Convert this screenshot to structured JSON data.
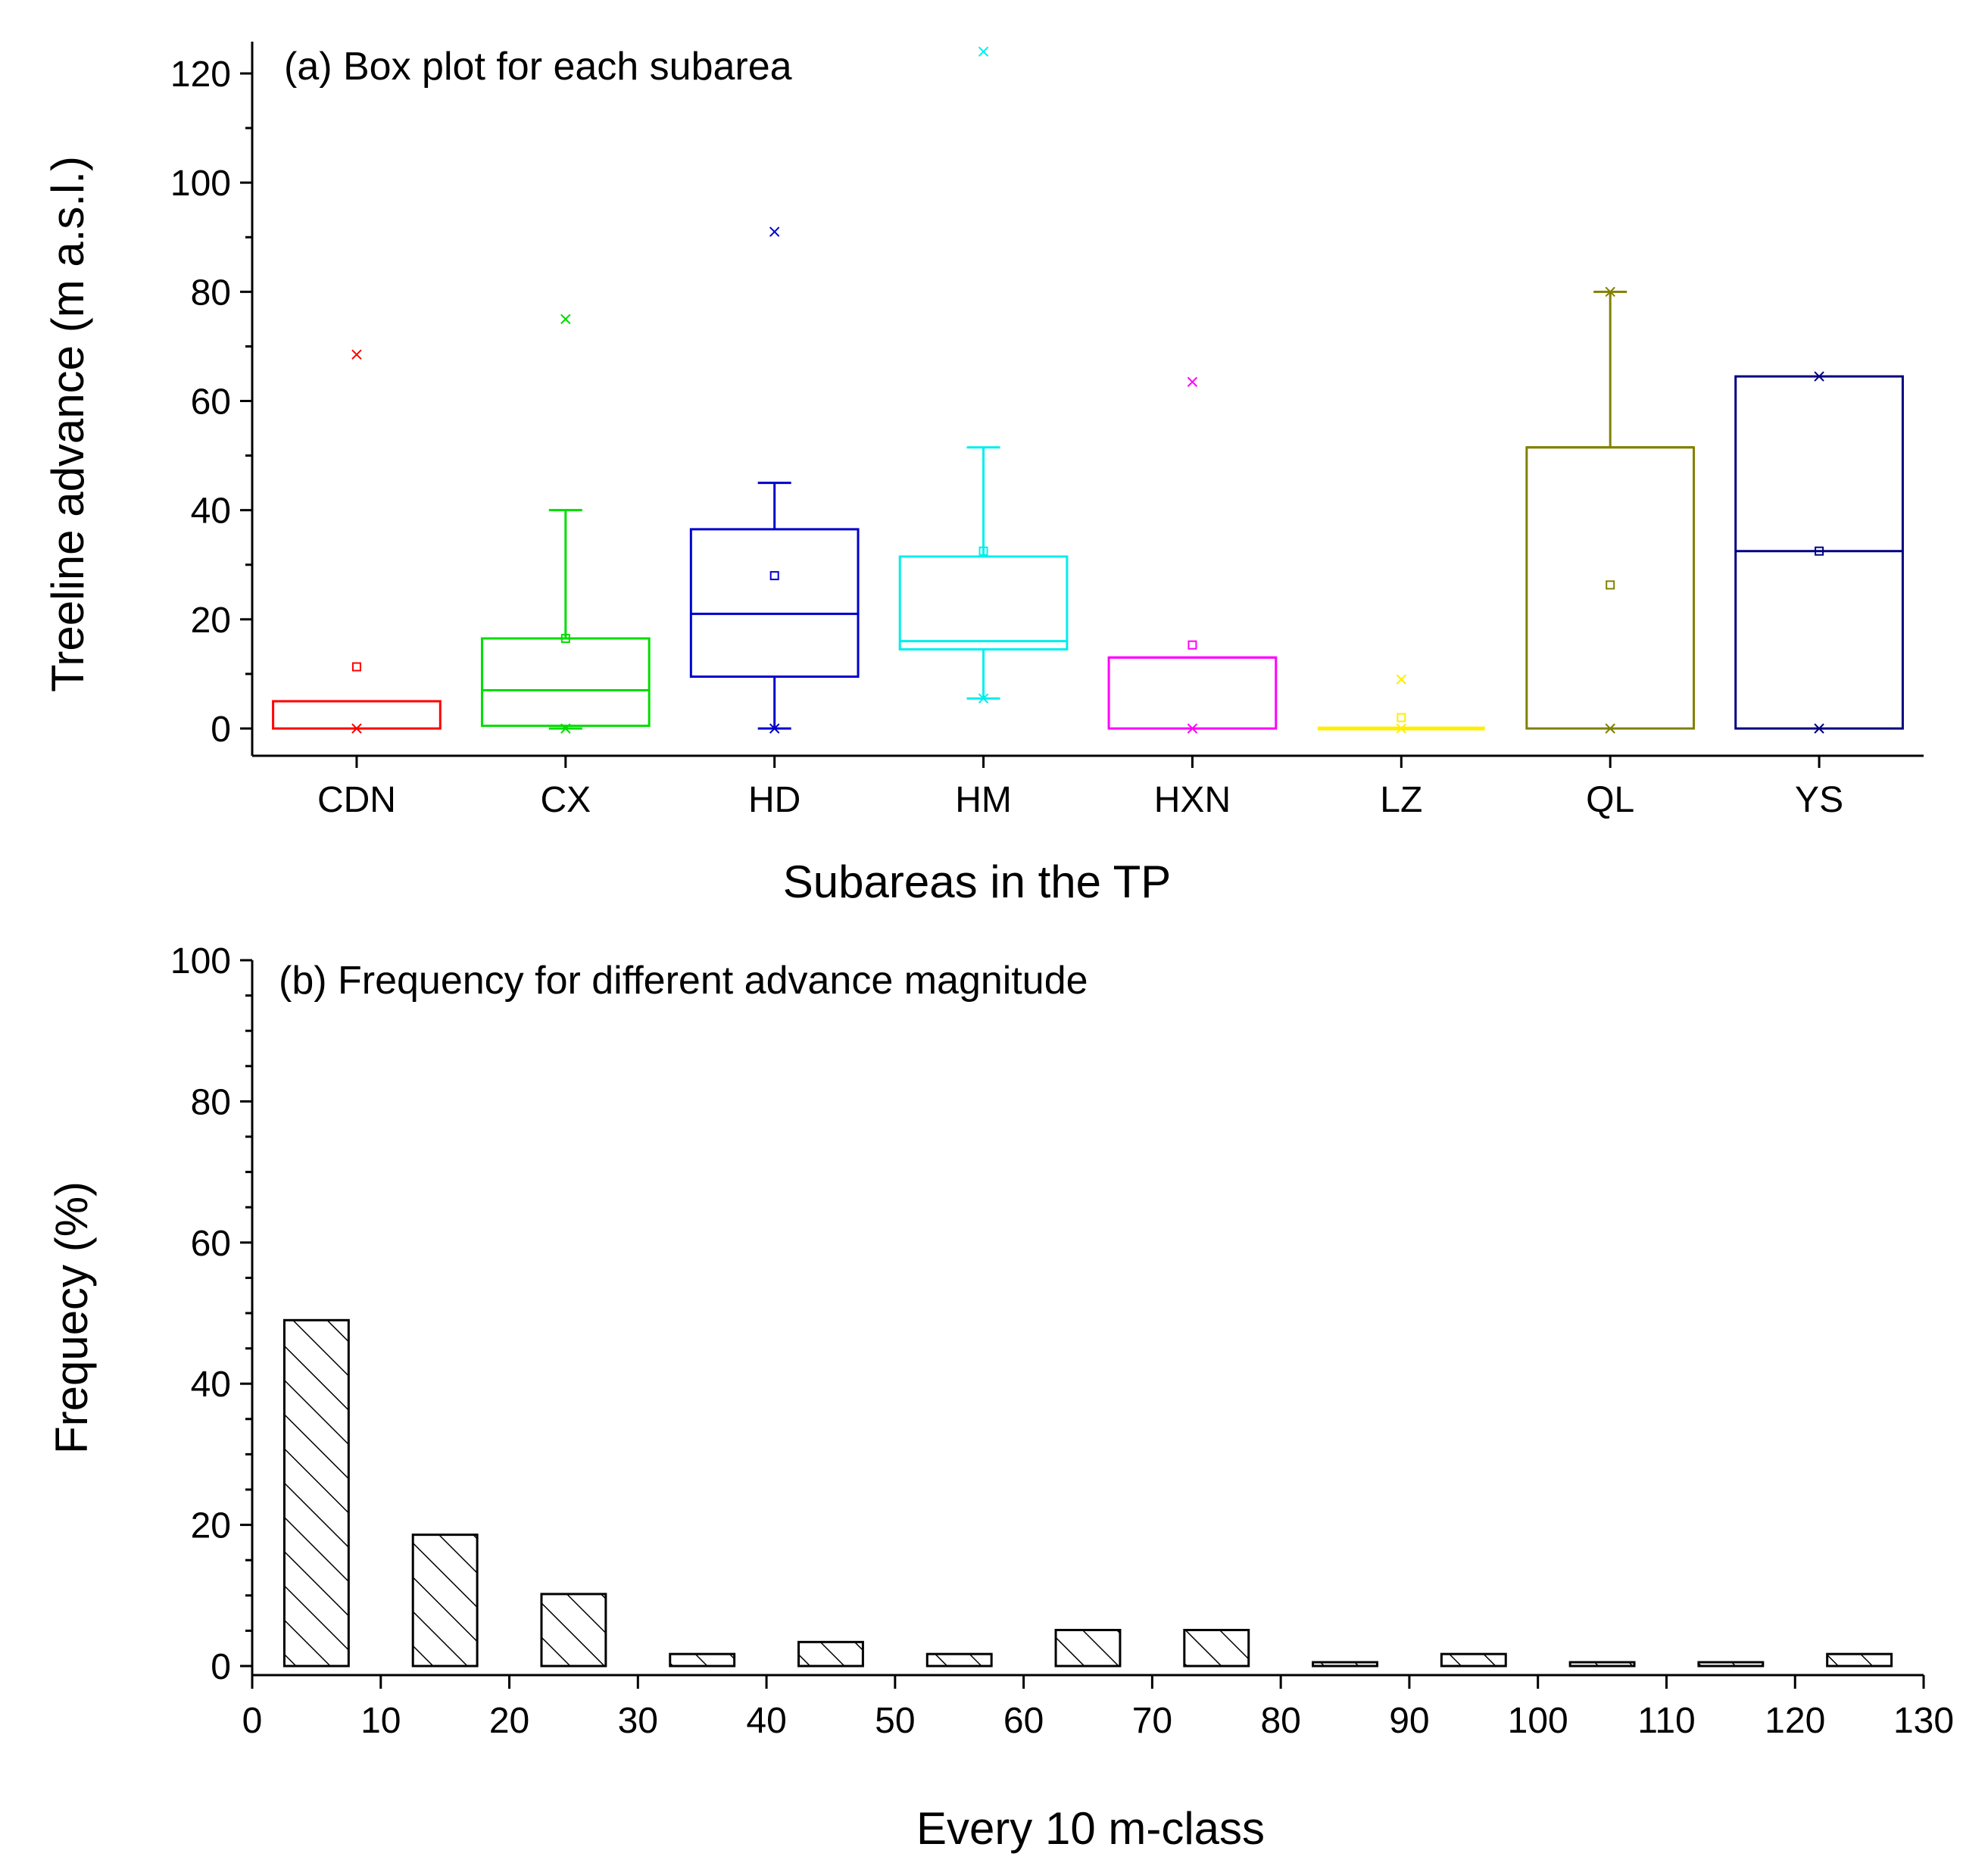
{
  "chart_data": [
    {
      "type": "box",
      "title": "(a)  Box plot for each subarea",
      "xlabel": "Subareas in the TP",
      "ylabel": "Treeline advance (m a.s.l.)",
      "ylim": [
        -5,
        130
      ],
      "yticks": [
        0,
        20,
        40,
        60,
        80,
        100,
        120
      ],
      "categories": [
        "CDN",
        "CX",
        "HD",
        "HM",
        "HXN",
        "LZ",
        "QL",
        "YS"
      ],
      "colors": [
        "#ff0000",
        "#00dd00",
        "#0000cc",
        "#00eeee",
        "#ff00ff",
        "#ffee00",
        "#808000",
        "#000080"
      ],
      "boxes": [
        {
          "q1": 0,
          "median": 5,
          "q3": 5,
          "whisker_low": null,
          "whisker_high": null,
          "mean": 11.3,
          "min": 0,
          "max": 68.5
        },
        {
          "q1": 0.5,
          "median": 7,
          "q3": 16.5,
          "whisker_low": 0,
          "whisker_high": 40,
          "mean": 16.5,
          "min": 0,
          "max": 75
        },
        {
          "q1": 9.5,
          "median": 21,
          "q3": 36.5,
          "whisker_low": 0,
          "whisker_high": 45,
          "mean": 28,
          "min": 0,
          "max": 91
        },
        {
          "q1": 14.5,
          "median": 16,
          "q3": 31.5,
          "whisker_low": 5.5,
          "whisker_high": 51.5,
          "mean": 32.5,
          "min": 5.5,
          "max": 124
        },
        {
          "q1": 0,
          "median": 13,
          "q3": 13,
          "whisker_low": null,
          "whisker_high": null,
          "mean": 15.3,
          "min": 0,
          "max": 63.5
        },
        {
          "q1": 0,
          "median": 0,
          "q3": 0,
          "whisker_low": null,
          "whisker_high": null,
          "mean": 2,
          "min": 0,
          "max": 9
        },
        {
          "q1": 0,
          "median": 51.5,
          "q3": 51.5,
          "whisker_low": null,
          "whisker_high": 80,
          "mean": 26.3,
          "min": 0,
          "max": 80
        },
        {
          "q1": 0,
          "median": 32.5,
          "q3": 64.5,
          "whisker_low": null,
          "whisker_high": null,
          "mean": 32.5,
          "min": 0,
          "max": 64.5
        }
      ]
    },
    {
      "type": "bar",
      "title": "(b) Frequency for different advance magnitude",
      "xlabel": "Every 10 m-class",
      "ylabel": "Frequecy  (%)",
      "xlim": [
        0,
        130
      ],
      "ylim": [
        -1,
        100
      ],
      "xticks": [
        0,
        10,
        20,
        30,
        40,
        50,
        60,
        70,
        80,
        90,
        100,
        110,
        120,
        130
      ],
      "yticks": [
        0,
        20,
        40,
        60,
        80,
        100
      ],
      "bin_centers": [
        5,
        15,
        25,
        35,
        45,
        55,
        65,
        75,
        85,
        95,
        105,
        115,
        125
      ],
      "values": [
        49,
        18.6,
        10.2,
        1.7,
        3.4,
        1.7,
        5.1,
        5.1,
        0,
        1.7,
        0,
        0,
        1.7
      ],
      "fill": "diagonal-hatch"
    }
  ]
}
